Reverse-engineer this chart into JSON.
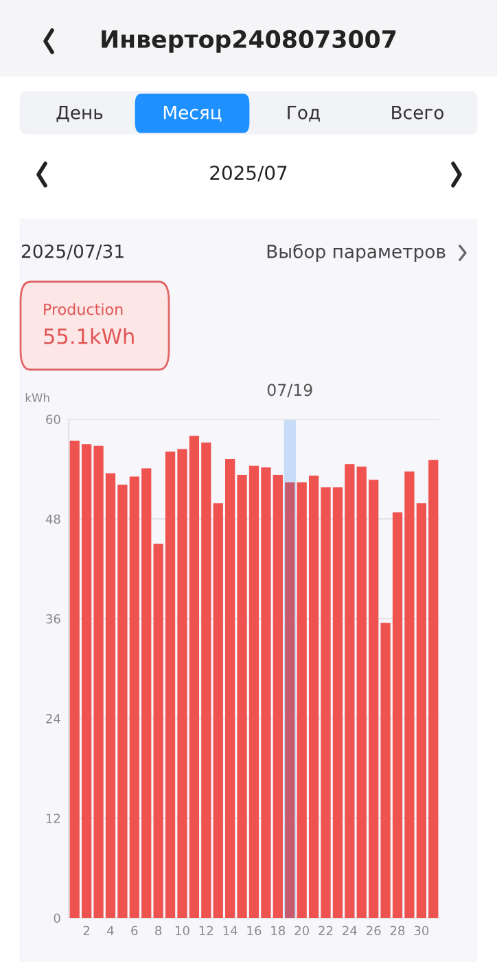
{
  "chart_data": {
    "type": "bar",
    "title": "Инвертор2408073007",
    "subtitle": "2025/07",
    "ylabel": "kWh",
    "annotations": [
      "День",
      "Месяц",
      "Год",
      "Всего",
      "2025/07/31",
      "Выбор параметров",
      "Production",
      "55.1kWh"
    ],
    "x": [
      1,
      2,
      3,
      4,
      5,
      6,
      7,
      8,
      9,
      10,
      11,
      12,
      13,
      14,
      15,
      16,
      17,
      18,
      19,
      20,
      21,
      22,
      23,
      24,
      25,
      26,
      27,
      28,
      29,
      30,
      31
    ],
    "values": [
      57.4,
      57.0,
      56.8,
      53.5,
      52.1,
      53.1,
      54.1,
      45.0,
      56.1,
      56.4,
      58.0,
      57.2,
      49.9,
      55.2,
      53.3,
      54.4,
      54.2,
      53.3,
      52.4,
      52.4,
      53.2,
      51.8,
      51.8,
      54.6,
      54.3,
      52.7,
      35.5,
      48.8,
      53.7,
      49.9,
      55.1
    ],
    "colors": [
      "#ef5350",
      "#ef5350",
      "#ef5350",
      "#ef5350",
      "#ef5350",
      "#ef5350",
      "#ef5350",
      "#ef5350",
      "#ef5350",
      "#ef5350",
      "#ef5350",
      "#ef5350",
      "#ef5350",
      "#ef5350",
      "#ef5350",
      "#ef5350",
      "#ef5350",
      "#ef5350",
      "#c85a6e",
      "#ef5350",
      "#ef5350",
      "#ef5350",
      "#ef5350",
      "#ef5350",
      "#ef5350",
      "#ef5350",
      "#ef5350",
      "#ef5350",
      "#ef5350",
      "#ef5350",
      "#ef5350"
    ],
    "xlim": [
      0.5,
      31.5
    ],
    "xticks": [
      2,
      4,
      6,
      8,
      10,
      12,
      14,
      16,
      18,
      20,
      22,
      24,
      26,
      28,
      30
    ],
    "ylim": [
      0,
      60
    ],
    "yticks": [
      0,
      12,
      24,
      36,
      48,
      60
    ],
    "bands": [
      {
        "axis": "x",
        "from": 18.5,
        "to": 19.5,
        "label": "07/19",
        "color": "#c9dcf7"
      }
    ],
    "grid": "y"
  }
}
